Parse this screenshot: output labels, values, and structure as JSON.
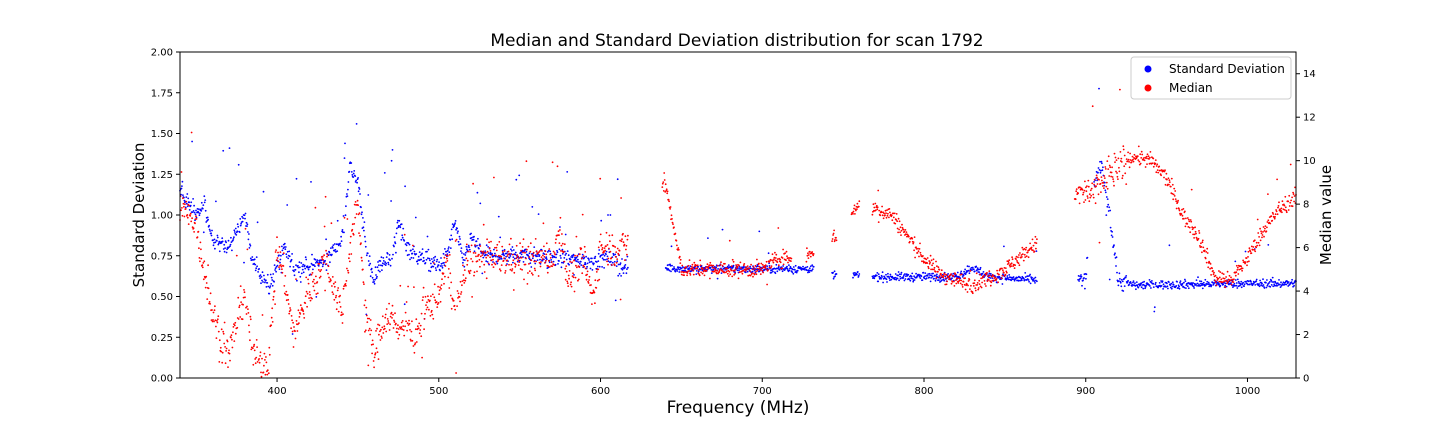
{
  "chart_data": {
    "type": "scatter",
    "title": "Median and Standard Deviation distribution for scan 1792",
    "xlabel": "Frequency (MHz)",
    "ylabel": "Standard Deviation",
    "y2label": "Median value",
    "xlim": [
      340,
      1030
    ],
    "ylim": [
      0,
      2.0
    ],
    "y2lim": [
      0,
      15
    ],
    "xticks": [
      400,
      500,
      600,
      700,
      800,
      900,
      1000
    ],
    "yticks": [
      0.0,
      0.25,
      0.5,
      0.75,
      1.0,
      1.25,
      1.5,
      1.75,
      2.0
    ],
    "yticklabels": [
      "0.00",
      "0.25",
      "0.50",
      "0.75",
      "1.00",
      "1.25",
      "1.50",
      "1.75",
      "2.00"
    ],
    "y2ticks": [
      0,
      2,
      4,
      6,
      8,
      10,
      12,
      14
    ],
    "grid": false,
    "legend_position": "top-right",
    "series": [
      {
        "name": "Standard Deviation",
        "color": "#0000ff",
        "axis": "left",
        "profile": [
          [
            340,
            1.15
          ],
          [
            350,
            1.0
          ],
          [
            355,
            1.05
          ],
          [
            360,
            0.85
          ],
          [
            370,
            0.8
          ],
          [
            380,
            1.0
          ],
          [
            385,
            0.7
          ],
          [
            390,
            0.65
          ],
          [
            395,
            0.55
          ],
          [
            400,
            0.7
          ],
          [
            405,
            0.78
          ],
          [
            410,
            0.68
          ],
          [
            420,
            0.68
          ],
          [
            430,
            0.72
          ],
          [
            440,
            0.85
          ],
          [
            445,
            1.3
          ],
          [
            450,
            1.2
          ],
          [
            455,
            0.8
          ],
          [
            460,
            0.6
          ],
          [
            465,
            0.72
          ],
          [
            470,
            0.72
          ],
          [
            475,
            0.95
          ],
          [
            480,
            0.82
          ],
          [
            485,
            0.75
          ],
          [
            490,
            0.74
          ],
          [
            500,
            0.68
          ],
          [
            505,
            0.75
          ],
          [
            510,
            0.95
          ],
          [
            515,
            0.72
          ],
          [
            520,
            0.85
          ],
          [
            530,
            0.74
          ],
          [
            540,
            0.75
          ],
          [
            550,
            0.76
          ],
          [
            560,
            0.74
          ],
          [
            565,
            0.74
          ],
          [
            590,
            0.72
          ],
          [
            600,
            0.72
          ],
          [
            605,
            0.74
          ],
          [
            615,
            0.68
          ],
          [
            640,
            0.68
          ],
          [
            650,
            0.67
          ],
          [
            700,
            0.67
          ],
          [
            720,
            0.67
          ],
          [
            730,
            0.67
          ],
          [
            745,
            0.63
          ],
          [
            760,
            0.63
          ],
          [
            770,
            0.62
          ],
          [
            800,
            0.62
          ],
          [
            820,
            0.62
          ],
          [
            830,
            0.68
          ],
          [
            840,
            0.62
          ],
          [
            870,
            0.6
          ],
          [
            895,
            0.6
          ],
          [
            900,
            0.6
          ],
          [
            905,
            1.2
          ],
          [
            910,
            1.3
          ],
          [
            915,
            1.0
          ],
          [
            920,
            0.6
          ],
          [
            930,
            0.57
          ],
          [
            1000,
            0.58
          ],
          [
            1030,
            0.58
          ]
        ],
        "gaps": [
          [
            617,
            640
          ],
          [
            732,
            743
          ],
          [
            746,
            756
          ],
          [
            760,
            768
          ],
          [
            870,
            895
          ],
          [
            901,
            905
          ]
        ]
      },
      {
        "name": "Median",
        "color": "#ff0000",
        "axis": "right",
        "profile": [
          [
            340,
            8.0
          ],
          [
            345,
            7.5
          ],
          [
            350,
            7.0
          ],
          [
            355,
            5.0
          ],
          [
            360,
            3.0
          ],
          [
            370,
            1.0
          ],
          [
            380,
            4.0
          ],
          [
            385,
            1.0
          ],
          [
            390,
            0.8
          ],
          [
            395,
            0.8
          ],
          [
            400,
            6.0
          ],
          [
            405,
            4.5
          ],
          [
            410,
            2.0
          ],
          [
            415,
            3.0
          ],
          [
            420,
            4.0
          ],
          [
            430,
            5.5
          ],
          [
            440,
            3.0
          ],
          [
            445,
            6.0
          ],
          [
            450,
            8.0
          ],
          [
            455,
            3.0
          ],
          [
            460,
            1.0
          ],
          [
            465,
            2.5
          ],
          [
            470,
            3.0
          ],
          [
            475,
            2.0
          ],
          [
            480,
            3.0
          ],
          [
            485,
            1.5
          ],
          [
            490,
            3.0
          ],
          [
            500,
            3.8
          ],
          [
            505,
            5.5
          ],
          [
            510,
            3.0
          ],
          [
            515,
            4.5
          ],
          [
            520,
            5.5
          ],
          [
            530,
            5.5
          ],
          [
            540,
            5.5
          ],
          [
            550,
            5.5
          ],
          [
            560,
            5.5
          ],
          [
            570,
            5.5
          ],
          [
            575,
            7.0
          ],
          [
            580,
            4.5
          ],
          [
            590,
            5.5
          ],
          [
            595,
            3.5
          ],
          [
            600,
            6.0
          ],
          [
            610,
            6.0
          ],
          [
            615,
            6.0
          ],
          [
            640,
            9.0
          ],
          [
            650,
            5.0
          ],
          [
            700,
            5.0
          ],
          [
            710,
            5.5
          ],
          [
            720,
            5.5
          ],
          [
            730,
            5.8
          ],
          [
            745,
            6.5
          ],
          [
            760,
            8.0
          ],
          [
            770,
            7.8
          ],
          [
            780,
            7.5
          ],
          [
            790,
            6.5
          ],
          [
            800,
            5.5
          ],
          [
            810,
            4.8
          ],
          [
            820,
            4.5
          ],
          [
            830,
            4.3
          ],
          [
            840,
            4.6
          ],
          [
            850,
            5.0
          ],
          [
            860,
            5.6
          ],
          [
            870,
            6.2
          ],
          [
            895,
            8.5
          ],
          [
            905,
            8.5
          ],
          [
            915,
            9.5
          ],
          [
            930,
            10.2
          ],
          [
            940,
            10.0
          ],
          [
            950,
            9.2
          ],
          [
            960,
            7.5
          ],
          [
            970,
            6.5
          ],
          [
            980,
            4.6
          ],
          [
            990,
            4.5
          ],
          [
            1000,
            5.5
          ],
          [
            1010,
            6.8
          ],
          [
            1020,
            7.8
          ],
          [
            1030,
            8.3
          ]
        ],
        "gaps": [
          [
            617,
            638
          ],
          [
            718,
            727
          ],
          [
            732,
            743
          ],
          [
            746,
            755
          ],
          [
            760,
            768
          ],
          [
            870,
            893
          ]
        ]
      }
    ]
  }
}
